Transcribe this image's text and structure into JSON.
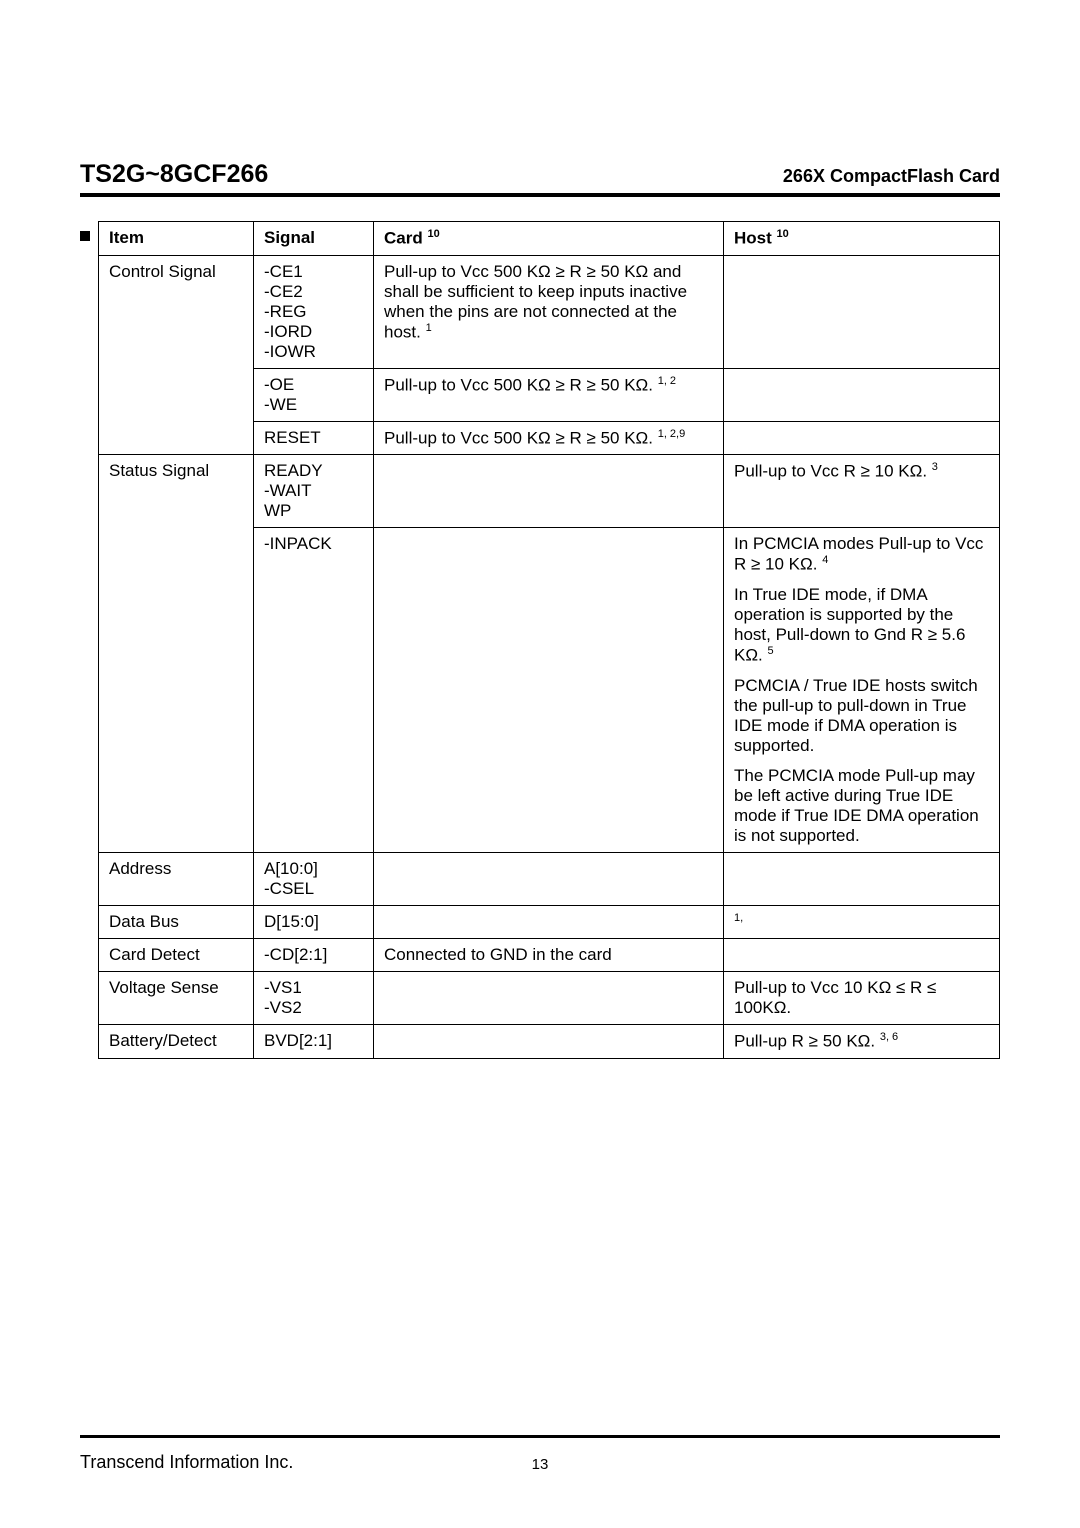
{
  "header": {
    "title": "TS2G~8GCF266",
    "subtitle": "266X CompactFlash Card"
  },
  "table": {
    "columns": {
      "item": "Item",
      "signal": "Signal",
      "card": "Card",
      "card_sup": "10",
      "host": "Host",
      "host_sup": "10"
    },
    "rows": [
      {
        "item": "Control Signal",
        "signal": "-CE1\n-CE2\n-REG\n-IORD\n-IOWR",
        "card": "Pull-up to Vcc 500 KΩ ≥ R ≥ 50 KΩ and shall be sufficient to keep inputs inactive when the pins are not connected at the host.",
        "card_sup": "1",
        "host": "",
        "item_rowspan": 3
      },
      {
        "signal": "-OE\n-WE",
        "card": "Pull-up to Vcc 500 KΩ ≥ R ≥ 50 KΩ.",
        "card_sup": "1, 2",
        "host": ""
      },
      {
        "signal": "RESET",
        "card": "Pull-up to Vcc 500 KΩ ≥ R ≥ 50 KΩ.",
        "card_sup": "1, 2,9",
        "host": ""
      },
      {
        "item": "Status Signal",
        "signal": "READY\n-WAIT\nWP",
        "card": "",
        "host": "Pull-up to Vcc R ≥ 10 KΩ.",
        "host_sup": "3",
        "item_rowspan": 2
      },
      {
        "signal": "-INPACK",
        "card": "",
        "host_paras": [
          {
            "text": "In PCMCIA modes Pull-up to Vcc R ≥ 10 KΩ.",
            "sup": "4"
          },
          {
            "text": "In True IDE mode, if DMA operation is supported by the host, Pull-down to Gnd R ≥ 5.6 KΩ.",
            "sup": "5"
          },
          {
            "text": "PCMCIA / True IDE hosts switch the pull-up to pull-down in True IDE mode if DMA operation is supported."
          },
          {
            "text": "The PCMCIA mode Pull-up may be left active during True IDE mode if True IDE DMA operation is not supported."
          }
        ]
      },
      {
        "item": "Address",
        "signal": "A[10:0]\n-CSEL",
        "card": "",
        "host": ""
      },
      {
        "item": "Data Bus",
        "signal": "D[15:0]",
        "card": "",
        "host": "",
        "host_sup": "1,"
      },
      {
        "item": "Card Detect",
        "signal": "-CD[2:1]",
        "card": "Connected to GND in the card",
        "host": ""
      },
      {
        "item": "Voltage Sense",
        "signal": "-VS1\n-VS2",
        "card": "",
        "host": "Pull-up to Vcc 10 KΩ ≤ R ≤ 100KΩ."
      },
      {
        "item": "Battery/Detect",
        "signal": "BVD[2:1]",
        "card": "",
        "host": "Pull-up R ≥ 50 KΩ.",
        "host_sup": "3, 6"
      }
    ]
  },
  "footer": {
    "company": "Transcend Information Inc.",
    "page": "13"
  }
}
